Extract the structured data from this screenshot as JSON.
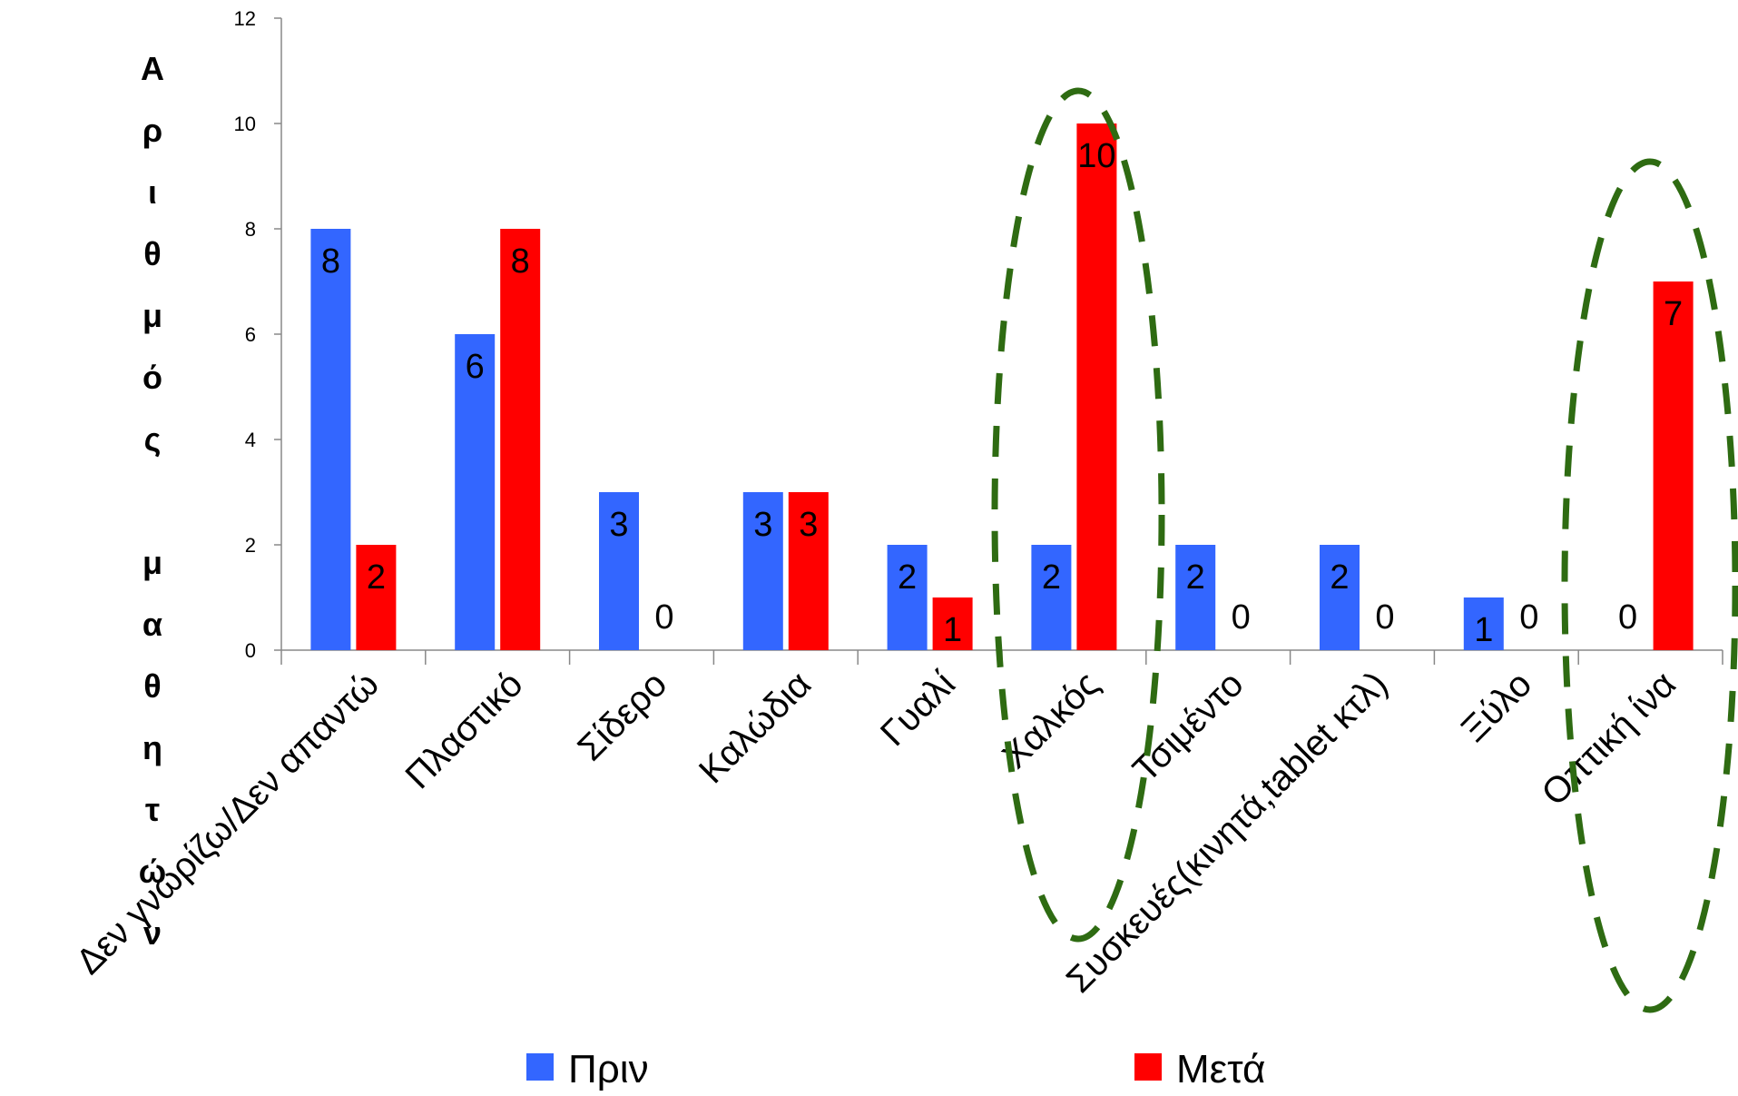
{
  "chart_data": {
    "type": "bar",
    "title": "",
    "xlabel": "",
    "ylabel": "Αριθμός μαθητών",
    "ylim": [
      0,
      12
    ],
    "yticks": [
      0,
      2,
      4,
      6,
      8,
      10,
      12
    ],
    "grid": false,
    "legend_position": "bottom",
    "categories": [
      "Δεν γνωρίζω/Δεν απαντώ",
      "Πλαστικό",
      "Σίδερο",
      "Καλώδια",
      "Γυαλί",
      "Χαλκός",
      "Τσιμέντο",
      "Συσκευές(κινητά,tablet κτλ)",
      "Ξύλο",
      "Οπτική ίνα"
    ],
    "series": [
      {
        "name": "Πριν",
        "color": "#3366ff",
        "values": [
          8,
          6,
          3,
          3,
          2,
          2,
          2,
          2,
          1,
          0
        ]
      },
      {
        "name": "Μετά",
        "color": "#ff0000",
        "values": [
          2,
          8,
          0,
          3,
          1,
          10,
          0,
          0,
          0,
          7
        ]
      }
    ],
    "highlighted_categories": [
      "Χαλκός",
      "Οπτική ίνα"
    ],
    "highlight_color": "#2e6b12"
  }
}
